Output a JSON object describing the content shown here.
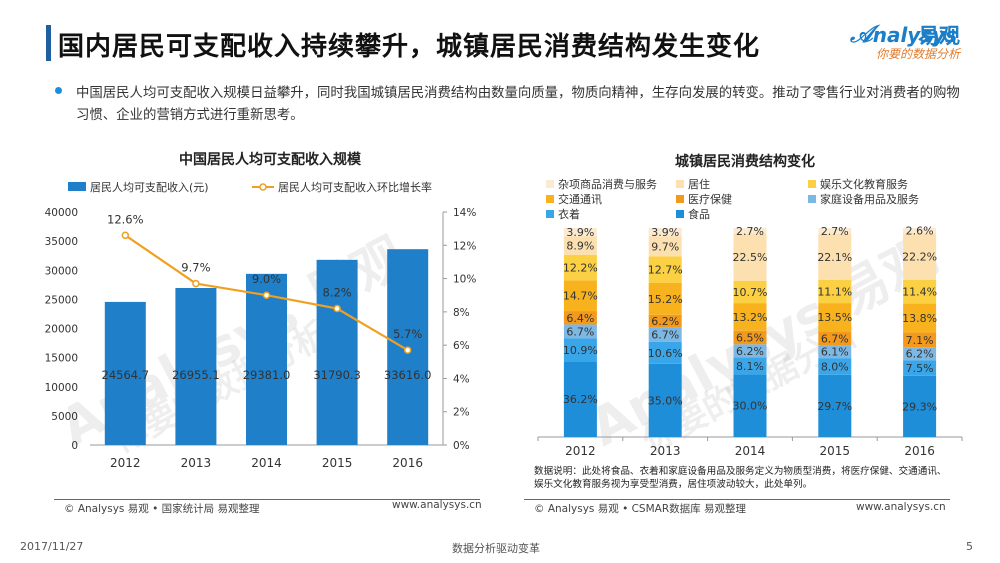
{
  "page": {
    "title": "国内居民可支配收入持续攀升，城镇居民消费结构发生变化",
    "brand_en": "nalysys",
    "brand_cn": "易观",
    "brand_slogan": "你要的数据分析",
    "intro": "中国居民人均可支配收入规模日益攀升，同时我国城镇居民消费结构由数量向质量，物质向精神，生存向发展的转变。推动了零售行业对消费者的购物习惯、企业的营销方式进行重新思考。",
    "watermark_en": "Analysys 易观",
    "watermark_cn": "你要的数据分析",
    "source_left": "© Analysys 易观 • 国家统计局  易观整理",
    "url_left": "www.analysys.cn",
    "source_right": "© Analysys 易观 • CSMAR数据库  易观整理",
    "url_right": "www.analysys.cn",
    "note": "数据说明：此处将食品、衣着和家庭设备用品及服务定义为物质型消费，将医疗保健、交通通讯、娱乐文化教育服务视为享受型消费，居住项波动较大，此处单列。",
    "footer_date": "2017/11/27",
    "footer_center": "数据分析驱动变革",
    "footer_page": "5"
  },
  "chart_data": [
    {
      "type": "bar",
      "title": "中国居民人均可支配收入规模",
      "categories": [
        "2012",
        "2013",
        "2014",
        "2015",
        "2016"
      ],
      "series": [
        {
          "name": "居民人均可支配收入(元)",
          "type": "bar",
          "axis": "left",
          "color": "#1f7fc9",
          "values": [
            24564.7,
            26955.1,
            29381.0,
            31790.3,
            33616.0
          ],
          "labels": [
            "24564.7",
            "26955.1",
            "29381.0",
            "31790.3",
            "33616.0"
          ]
        },
        {
          "name": "居民人均可支配收入环比增长率",
          "type": "line",
          "axis": "right",
          "color": "#f0a020",
          "values": [
            12.6,
            9.7,
            9.0,
            8.2,
            5.7
          ],
          "labels": [
            "12.6%",
            "9.7%",
            "9.0%",
            "8.2%",
            "5.7%"
          ]
        }
      ],
      "ylim": [
        0,
        40000
      ],
      "yticks": [
        "0",
        "5000",
        "10000",
        "15000",
        "20000",
        "25000",
        "30000",
        "35000",
        "40000"
      ],
      "y2lim": [
        0,
        14
      ],
      "y2ticks": [
        "0%",
        "2%",
        "4%",
        "6%",
        "8%",
        "10%",
        "12%",
        "14%"
      ],
      "legend": "top",
      "grid": false
    },
    {
      "type": "bar",
      "stacked": true,
      "title": "城镇居民消费结构变化",
      "categories": [
        "2012",
        "2013",
        "2014",
        "2015",
        "2016"
      ],
      "series": [
        {
          "name": "食品",
          "color": "#1f8ed8",
          "values": [
            36.2,
            35.0,
            30.0,
            29.7,
            29.3
          ],
          "labels": [
            "36.2%",
            "35.0%",
            "30.0%",
            "29.7%",
            "29.3%"
          ]
        },
        {
          "name": "衣着",
          "color": "#3aa6ea",
          "values": [
            10.9,
            10.6,
            8.1,
            8.0,
            7.5
          ],
          "labels": [
            "10.9%",
            "10.6%",
            "8.1%",
            "8.0%",
            "7.5%"
          ]
        },
        {
          "name": "家庭设备用品及服务",
          "color": "#7db8e4",
          "values": [
            6.7,
            6.7,
            6.2,
            6.1,
            6.2
          ],
          "labels": [
            "6.7%",
            "6.7%",
            "6.2%",
            "6.1%",
            "6.2%"
          ]
        },
        {
          "name": "医疗保健",
          "color": "#f39a1c",
          "values": [
            6.4,
            6.2,
            6.5,
            6.7,
            7.1
          ],
          "labels": [
            "6.4%",
            "6.2%",
            "6.5%",
            "6.7%",
            "7.1%"
          ]
        },
        {
          "name": "交通通讯",
          "color": "#f7b21e",
          "values": [
            14.7,
            15.2,
            13.2,
            13.5,
            13.8
          ],
          "labels": [
            "14.7%",
            "15.2%",
            "13.2%",
            "13.5%",
            "13.8%"
          ]
        },
        {
          "name": "娱乐文化教育服务",
          "color": "#fbd042",
          "values": [
            12.2,
            12.7,
            10.7,
            11.1,
            11.4
          ],
          "labels": [
            "12.2%",
            "12.7%",
            "10.7%",
            "11.1%",
            "11.4%"
          ]
        },
        {
          "name": "居住",
          "color": "#fde0b0",
          "values": [
            8.9,
            9.7,
            22.5,
            22.1,
            22.2
          ],
          "labels": [
            "8.9%",
            "9.7%",
            "22.5%",
            "22.1%",
            "22.2%"
          ]
        },
        {
          "name": "杂项商品消费与服务",
          "color": "#fbead2",
          "values": [
            3.9,
            3.9,
            2.7,
            2.7,
            2.6
          ],
          "labels": [
            "3.9%",
            "3.9%",
            "2.7%",
            "2.7%",
            "2.6%"
          ]
        }
      ],
      "legend_order": [
        "杂项商品消费与服务",
        "居住",
        "娱乐文化教育服务",
        "交通通讯",
        "医疗保健",
        "家庭设备用品及服务",
        "衣着",
        "食品"
      ],
      "legend": "top",
      "grid": false
    }
  ]
}
